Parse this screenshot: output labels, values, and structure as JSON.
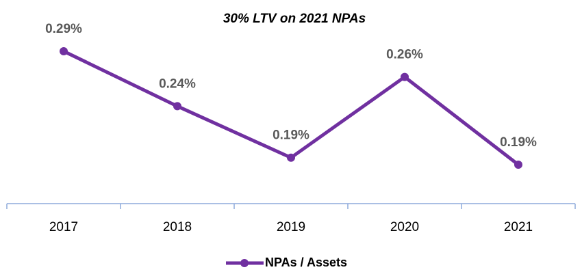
{
  "chart_data": {
    "type": "line",
    "title": "30% LTV on 2021 NPAs",
    "categories": [
      "2017",
      "2018",
      "2019",
      "2020",
      "2021"
    ],
    "series": [
      {
        "name": "NPAs / Assets",
        "color": "#7030a0",
        "values": [
          0.285,
          0.238,
          0.194,
          0.263,
          0.188
        ],
        "value_labels": [
          "0.29%",
          "0.24%",
          "0.19%",
          "0.26%",
          "0.19%"
        ]
      }
    ]
  }
}
